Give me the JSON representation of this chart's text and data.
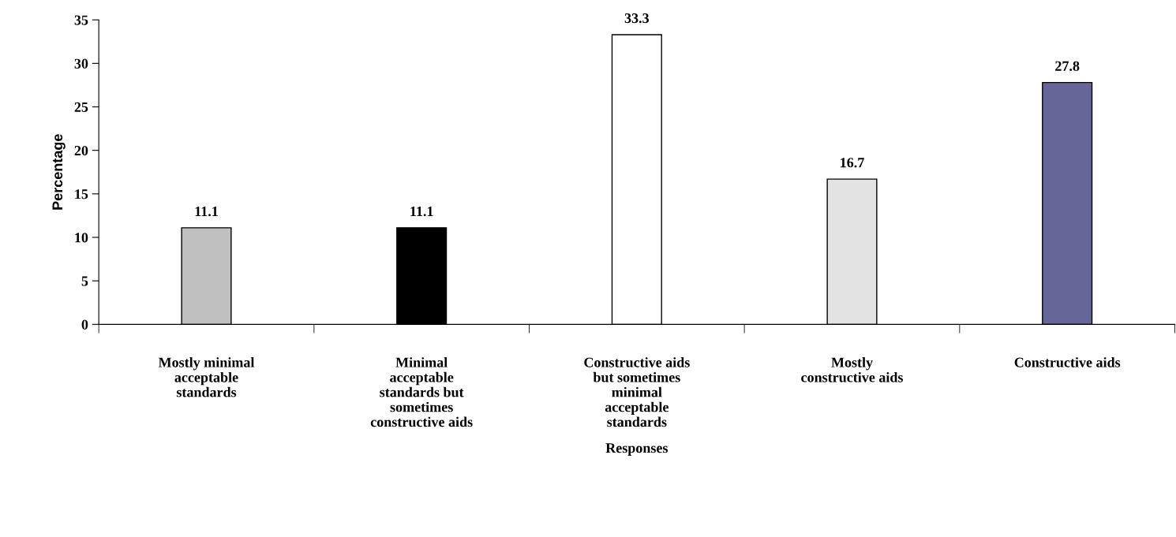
{
  "chart_data": {
    "type": "bar",
    "xlabel": "Responses",
    "ylabel": "Percentage",
    "categories": [
      "Mostly minimal\nacceptable\nstandards",
      "Minimal\nacceptable\nstandards but\nsometimes\nconstructive aids",
      "Constructive aids\nbut sometimes\nminimal\nacceptable\nstandards",
      "Mostly\nconstructive aids",
      "Constructive aids"
    ],
    "values": [
      11.1,
      11.1,
      33.3,
      16.7,
      27.8
    ],
    "colors": [
      "#c0c0c0",
      "#000000",
      "#ffffff",
      "#e3e3e3",
      "#666699"
    ],
    "ylim": [
      0,
      35
    ],
    "yticks": [
      0,
      5,
      10,
      15,
      20,
      25,
      30,
      35
    ],
    "data_labels": true,
    "grid": false,
    "legend": false
  }
}
